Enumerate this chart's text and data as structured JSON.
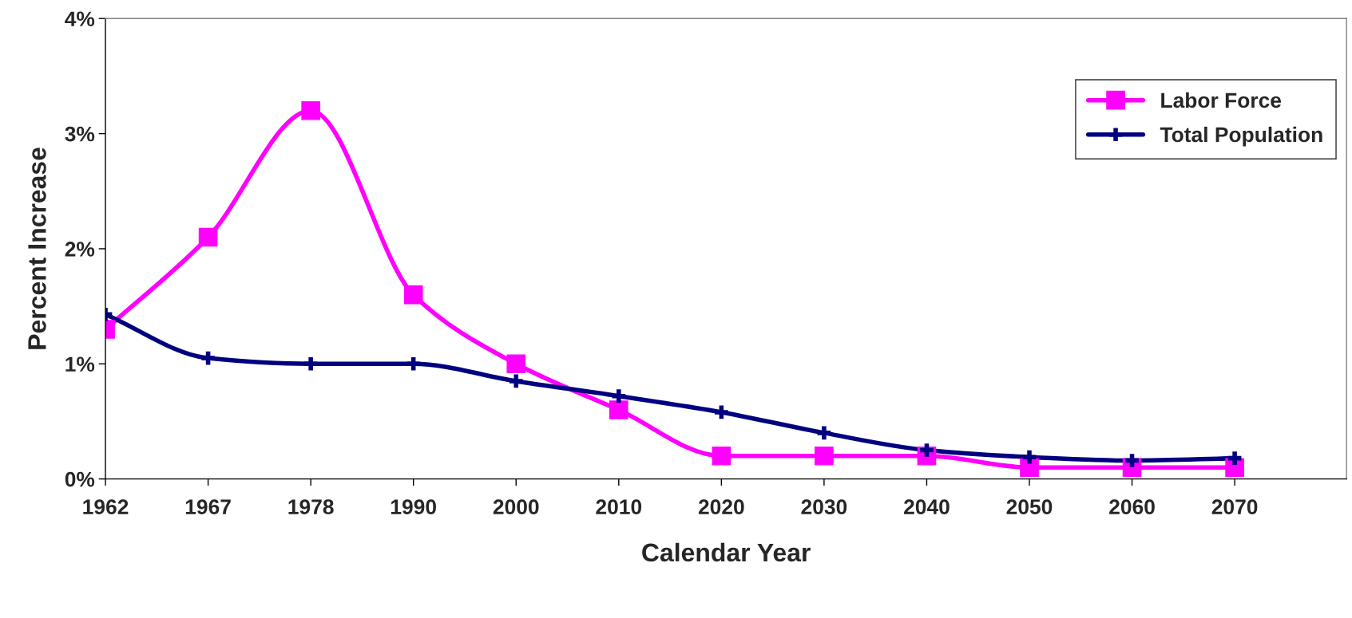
{
  "chart_data": {
    "type": "line",
    "xlabel": "Calendar Year",
    "ylabel": "Percent Increase",
    "categories": [
      "1962",
      "1967",
      "1978",
      "1990",
      "2000",
      "2010",
      "2020",
      "2030",
      "2040",
      "2050",
      "2060",
      "2070"
    ],
    "series": [
      {
        "name": "Labor Force",
        "color": "#ff00ff",
        "marker": "square",
        "values": [
          1.3,
          2.1,
          3.2,
          1.6,
          1.0,
          0.6,
          0.2,
          0.2,
          0.2,
          0.1,
          0.1,
          0.1
        ]
      },
      {
        "name": "Total Population",
        "color": "#000080",
        "marker": "cross",
        "values": [
          1.43,
          1.05,
          1.0,
          1.0,
          0.85,
          0.72,
          0.58,
          0.4,
          0.25,
          0.19,
          0.16,
          0.18
        ]
      }
    ],
    "ylim": [
      0,
      4
    ],
    "yticks": [
      {
        "value": 0,
        "label": "0%"
      },
      {
        "value": 1,
        "label": "1%"
      },
      {
        "value": 2,
        "label": "2%"
      },
      {
        "value": 3,
        "label": "3%"
      },
      {
        "value": 4,
        "label": "4%"
      }
    ],
    "grid": false,
    "legend": "top right",
    "line_style": "solid"
  }
}
